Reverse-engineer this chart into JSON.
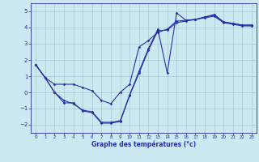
{
  "xlabel": "Graphe des températures (°c)",
  "background_color": "#cce8f0",
  "grid_color": "#a0bfcc",
  "line_color": "#2233aa",
  "xlim": [
    -0.5,
    23.5
  ],
  "ylim": [
    -2.5,
    5.5
  ],
  "yticks": [
    -2,
    -1,
    0,
    1,
    2,
    3,
    4,
    5
  ],
  "xticks": [
    0,
    1,
    2,
    3,
    4,
    5,
    6,
    7,
    8,
    9,
    10,
    11,
    12,
    13,
    14,
    15,
    16,
    17,
    18,
    19,
    20,
    21,
    22,
    23
  ],
  "line1_x": [
    0,
    1,
    2,
    3,
    4,
    5,
    6,
    7,
    8,
    9,
    10,
    11,
    12,
    13,
    14,
    15,
    16,
    17,
    18,
    19,
    20,
    21,
    22,
    23
  ],
  "line1_y": [
    1.7,
    0.9,
    0.5,
    0.5,
    0.5,
    0.3,
    0.1,
    -0.5,
    -0.7,
    0.0,
    0.5,
    2.8,
    3.2,
    3.7,
    3.9,
    4.4,
    4.45,
    4.5,
    4.65,
    4.75,
    4.35,
    4.25,
    4.15,
    4.15
  ],
  "line2_x": [
    0,
    1,
    2,
    3,
    4,
    5,
    6,
    7,
    8,
    9,
    10,
    11,
    12,
    13,
    14,
    15,
    16,
    17,
    18,
    19,
    20,
    21,
    22,
    23
  ],
  "line2_y": [
    1.7,
    0.9,
    0.0,
    -0.5,
    -0.7,
    -1.1,
    -1.2,
    -1.85,
    -1.85,
    -1.75,
    -0.15,
    1.3,
    2.7,
    3.9,
    1.2,
    4.9,
    4.45,
    4.5,
    4.65,
    4.8,
    4.35,
    4.25,
    4.15,
    4.15
  ],
  "line3_x": [
    0,
    1,
    2,
    3,
    4,
    5,
    6,
    7,
    8,
    9,
    10,
    11,
    12,
    13,
    14,
    15,
    16,
    17,
    18,
    19,
    20,
    21,
    22,
    23
  ],
  "line3_y": [
    1.7,
    0.9,
    0.0,
    -0.65,
    -0.65,
    -1.15,
    -1.25,
    -1.9,
    -1.9,
    -1.8,
    -0.2,
    1.2,
    2.6,
    3.8,
    3.85,
    4.3,
    4.4,
    4.5,
    4.6,
    4.7,
    4.3,
    4.2,
    4.1,
    4.1
  ]
}
